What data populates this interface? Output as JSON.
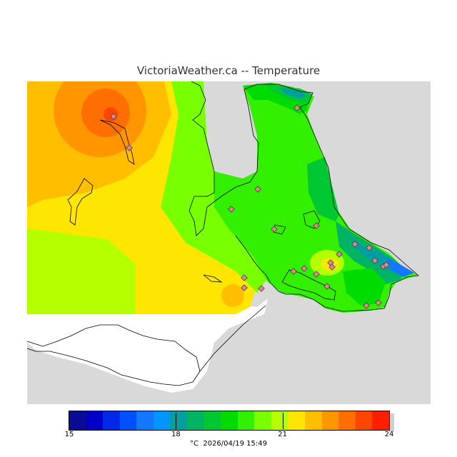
{
  "header": {
    "title": "VictoriaWeather.ca -- Temperature"
  },
  "legend": {
    "unit": "°C",
    "timestamp": "2026/04/19 15:49",
    "ticks": [
      "15",
      "18",
      "21",
      "24"
    ],
    "min": 15,
    "max": 24,
    "step": 0.5,
    "colors": [
      "#0a0a96",
      "#0000c8",
      "#0028e6",
      "#0050ff",
      "#1478ff",
      "#0096ff",
      "#00a0a0",
      "#00b464",
      "#00c832",
      "#00dc00",
      "#32f000",
      "#78ff00",
      "#b4ff00",
      "#ffe600",
      "#ffbe00",
      "#ff9600",
      "#ff6e00",
      "#ff4600",
      "#ff1e00"
    ]
  },
  "map": {
    "land_color": "#d9d9d9",
    "station_color": "#e08890",
    "stations": 24
  }
}
